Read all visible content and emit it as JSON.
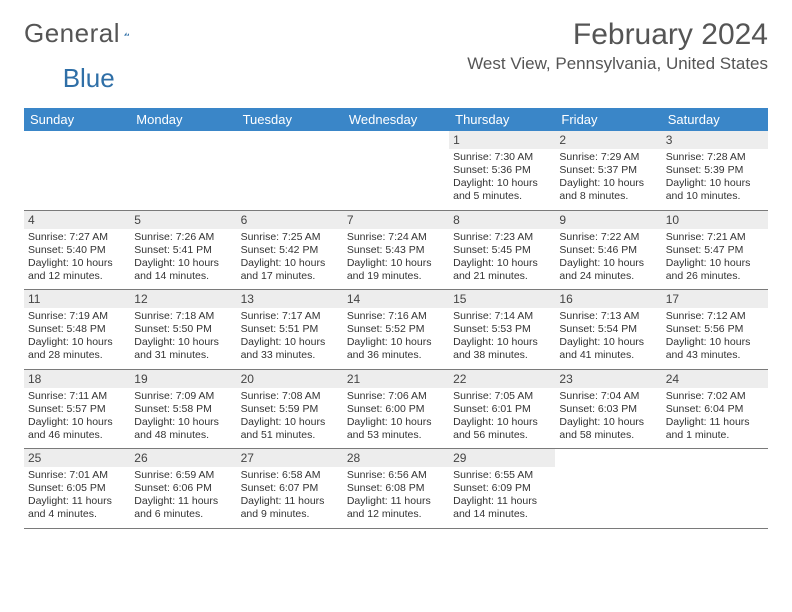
{
  "logo": {
    "text1": "General",
    "text2": "Blue"
  },
  "header": {
    "month_title": "February 2024",
    "location": "West View, Pennsylvania, United States"
  },
  "colors": {
    "header_bg": "#3a86c8",
    "header_text": "#ffffff",
    "daynum_bg": "#ededed",
    "border": "#7a7a7a",
    "text": "#333333",
    "title_text": "#555555",
    "logo_blue": "#2f6fa7"
  },
  "day_names": [
    "Sunday",
    "Monday",
    "Tuesday",
    "Wednesday",
    "Thursday",
    "Friday",
    "Saturday"
  ],
  "weeks": [
    [
      {
        "empty": true
      },
      {
        "empty": true
      },
      {
        "empty": true
      },
      {
        "empty": true
      },
      {
        "day": "1",
        "sunrise": "Sunrise: 7:30 AM",
        "sunset": "Sunset: 5:36 PM",
        "daylight1": "Daylight: 10 hours",
        "daylight2": "and 5 minutes."
      },
      {
        "day": "2",
        "sunrise": "Sunrise: 7:29 AM",
        "sunset": "Sunset: 5:37 PM",
        "daylight1": "Daylight: 10 hours",
        "daylight2": "and 8 minutes."
      },
      {
        "day": "3",
        "sunrise": "Sunrise: 7:28 AM",
        "sunset": "Sunset: 5:39 PM",
        "daylight1": "Daylight: 10 hours",
        "daylight2": "and 10 minutes."
      }
    ],
    [
      {
        "day": "4",
        "sunrise": "Sunrise: 7:27 AM",
        "sunset": "Sunset: 5:40 PM",
        "daylight1": "Daylight: 10 hours",
        "daylight2": "and 12 minutes."
      },
      {
        "day": "5",
        "sunrise": "Sunrise: 7:26 AM",
        "sunset": "Sunset: 5:41 PM",
        "daylight1": "Daylight: 10 hours",
        "daylight2": "and 14 minutes."
      },
      {
        "day": "6",
        "sunrise": "Sunrise: 7:25 AM",
        "sunset": "Sunset: 5:42 PM",
        "daylight1": "Daylight: 10 hours",
        "daylight2": "and 17 minutes."
      },
      {
        "day": "7",
        "sunrise": "Sunrise: 7:24 AM",
        "sunset": "Sunset: 5:43 PM",
        "daylight1": "Daylight: 10 hours",
        "daylight2": "and 19 minutes."
      },
      {
        "day": "8",
        "sunrise": "Sunrise: 7:23 AM",
        "sunset": "Sunset: 5:45 PM",
        "daylight1": "Daylight: 10 hours",
        "daylight2": "and 21 minutes."
      },
      {
        "day": "9",
        "sunrise": "Sunrise: 7:22 AM",
        "sunset": "Sunset: 5:46 PM",
        "daylight1": "Daylight: 10 hours",
        "daylight2": "and 24 minutes."
      },
      {
        "day": "10",
        "sunrise": "Sunrise: 7:21 AM",
        "sunset": "Sunset: 5:47 PM",
        "daylight1": "Daylight: 10 hours",
        "daylight2": "and 26 minutes."
      }
    ],
    [
      {
        "day": "11",
        "sunrise": "Sunrise: 7:19 AM",
        "sunset": "Sunset: 5:48 PM",
        "daylight1": "Daylight: 10 hours",
        "daylight2": "and 28 minutes."
      },
      {
        "day": "12",
        "sunrise": "Sunrise: 7:18 AM",
        "sunset": "Sunset: 5:50 PM",
        "daylight1": "Daylight: 10 hours",
        "daylight2": "and 31 minutes."
      },
      {
        "day": "13",
        "sunrise": "Sunrise: 7:17 AM",
        "sunset": "Sunset: 5:51 PM",
        "daylight1": "Daylight: 10 hours",
        "daylight2": "and 33 minutes."
      },
      {
        "day": "14",
        "sunrise": "Sunrise: 7:16 AM",
        "sunset": "Sunset: 5:52 PM",
        "daylight1": "Daylight: 10 hours",
        "daylight2": "and 36 minutes."
      },
      {
        "day": "15",
        "sunrise": "Sunrise: 7:14 AM",
        "sunset": "Sunset: 5:53 PM",
        "daylight1": "Daylight: 10 hours",
        "daylight2": "and 38 minutes."
      },
      {
        "day": "16",
        "sunrise": "Sunrise: 7:13 AM",
        "sunset": "Sunset: 5:54 PM",
        "daylight1": "Daylight: 10 hours",
        "daylight2": "and 41 minutes."
      },
      {
        "day": "17",
        "sunrise": "Sunrise: 7:12 AM",
        "sunset": "Sunset: 5:56 PM",
        "daylight1": "Daylight: 10 hours",
        "daylight2": "and 43 minutes."
      }
    ],
    [
      {
        "day": "18",
        "sunrise": "Sunrise: 7:11 AM",
        "sunset": "Sunset: 5:57 PM",
        "daylight1": "Daylight: 10 hours",
        "daylight2": "and 46 minutes."
      },
      {
        "day": "19",
        "sunrise": "Sunrise: 7:09 AM",
        "sunset": "Sunset: 5:58 PM",
        "daylight1": "Daylight: 10 hours",
        "daylight2": "and 48 minutes."
      },
      {
        "day": "20",
        "sunrise": "Sunrise: 7:08 AM",
        "sunset": "Sunset: 5:59 PM",
        "daylight1": "Daylight: 10 hours",
        "daylight2": "and 51 minutes."
      },
      {
        "day": "21",
        "sunrise": "Sunrise: 7:06 AM",
        "sunset": "Sunset: 6:00 PM",
        "daylight1": "Daylight: 10 hours",
        "daylight2": "and 53 minutes."
      },
      {
        "day": "22",
        "sunrise": "Sunrise: 7:05 AM",
        "sunset": "Sunset: 6:01 PM",
        "daylight1": "Daylight: 10 hours",
        "daylight2": "and 56 minutes."
      },
      {
        "day": "23",
        "sunrise": "Sunrise: 7:04 AM",
        "sunset": "Sunset: 6:03 PM",
        "daylight1": "Daylight: 10 hours",
        "daylight2": "and 58 minutes."
      },
      {
        "day": "24",
        "sunrise": "Sunrise: 7:02 AM",
        "sunset": "Sunset: 6:04 PM",
        "daylight1": "Daylight: 11 hours",
        "daylight2": "and 1 minute."
      }
    ],
    [
      {
        "day": "25",
        "sunrise": "Sunrise: 7:01 AM",
        "sunset": "Sunset: 6:05 PM",
        "daylight1": "Daylight: 11 hours",
        "daylight2": "and 4 minutes."
      },
      {
        "day": "26",
        "sunrise": "Sunrise: 6:59 AM",
        "sunset": "Sunset: 6:06 PM",
        "daylight1": "Daylight: 11 hours",
        "daylight2": "and 6 minutes."
      },
      {
        "day": "27",
        "sunrise": "Sunrise: 6:58 AM",
        "sunset": "Sunset: 6:07 PM",
        "daylight1": "Daylight: 11 hours",
        "daylight2": "and 9 minutes."
      },
      {
        "day": "28",
        "sunrise": "Sunrise: 6:56 AM",
        "sunset": "Sunset: 6:08 PM",
        "daylight1": "Daylight: 11 hours",
        "daylight2": "and 12 minutes."
      },
      {
        "day": "29",
        "sunrise": "Sunrise: 6:55 AM",
        "sunset": "Sunset: 6:09 PM",
        "daylight1": "Daylight: 11 hours",
        "daylight2": "and 14 minutes."
      },
      {
        "empty": true
      },
      {
        "empty": true
      }
    ]
  ]
}
